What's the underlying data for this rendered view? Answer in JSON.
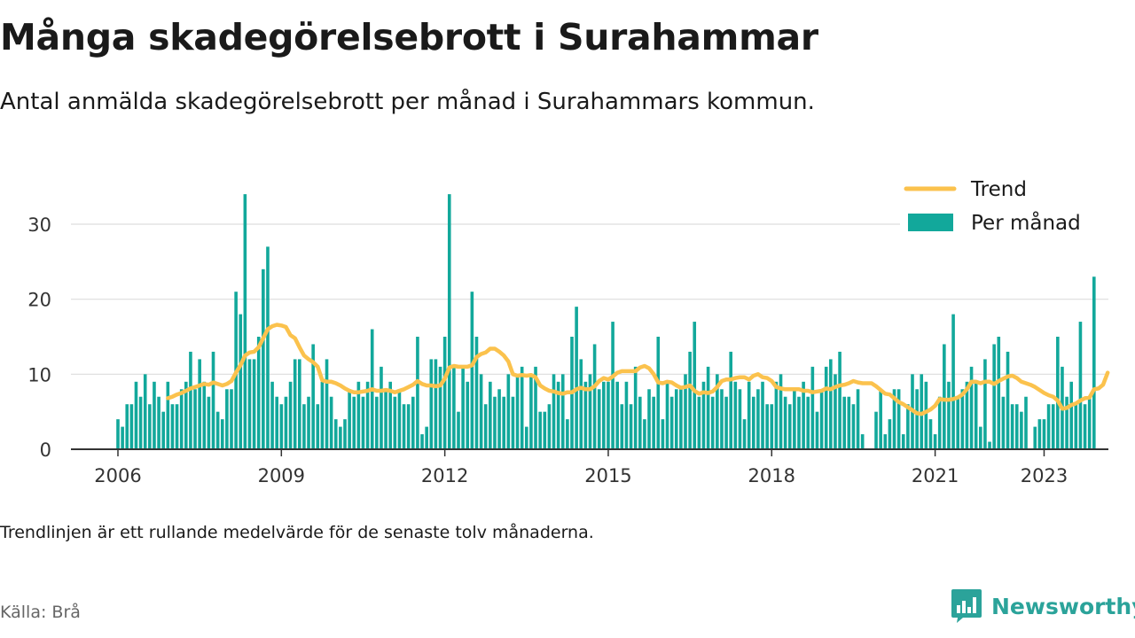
{
  "title": "Många skadegörelsebrott i Surahammar",
  "subtitle": "Antal anmälda skadegörelsebrott per månad i Surahammars kommun.",
  "note": "Trendlinjen är ett rullande medelvärde för de senaste tolv månaderna.",
  "source": "Källa: Brå",
  "brand": {
    "name": "Newsworthy",
    "icon": "newsworthy-logo-icon",
    "color": "#2ba39a"
  },
  "colors": {
    "bars": "#12a89b",
    "trend": "#fbc24d",
    "grid": "#dddddd",
    "axis": "#333333"
  },
  "chart_data": {
    "type": "bar",
    "start": "2006-01",
    "x_ticks": [
      "2006",
      "2009",
      "2012",
      "2015",
      "2018",
      "2021",
      "2023"
    ],
    "y_ticks": [
      0,
      10,
      20,
      30
    ],
    "ylim": [
      0,
      36
    ],
    "legend_position": "top-right",
    "grid": true,
    "series": [
      {
        "name": "Per månad",
        "type": "bar",
        "values": [
          4,
          3,
          6,
          6,
          9,
          7,
          10,
          6,
          9,
          7,
          5,
          9,
          6,
          6,
          8,
          9,
          13,
          8,
          12,
          9,
          7,
          13,
          5,
          4,
          8,
          8,
          21,
          18,
          34,
          12,
          12,
          15,
          24,
          27,
          9,
          7,
          6,
          7,
          9,
          12,
          12,
          6,
          7,
          14,
          6,
          9,
          12,
          7,
          4,
          3,
          4,
          8,
          7,
          9,
          7,
          9,
          16,
          7,
          11,
          8,
          9,
          7,
          8,
          6,
          6,
          7,
          15,
          2,
          3,
          12,
          12,
          11,
          15,
          34,
          11,
          5,
          11,
          9,
          21,
          15,
          10,
          6,
          9,
          7,
          8,
          7,
          10,
          7,
          10,
          11,
          3,
          10,
          11,
          5,
          5,
          6,
          10,
          9,
          10,
          4,
          15,
          19,
          12,
          9,
          10,
          14,
          8,
          9,
          9,
          17,
          9,
          6,
          9,
          6,
          11,
          7,
          4,
          8,
          7,
          15,
          4,
          9,
          7,
          8,
          8,
          10,
          13,
          17,
          7,
          9,
          11,
          7,
          10,
          8,
          7,
          13,
          9,
          8,
          4,
          9,
          7,
          8,
          9,
          6,
          6,
          9,
          10,
          7,
          6,
          8,
          7,
          9,
          7,
          11,
          5,
          8,
          11,
          12,
          10,
          13,
          7,
          7,
          6,
          8,
          2,
          0,
          0,
          5,
          8,
          2,
          4,
          8,
          8,
          2,
          6,
          10,
          8,
          10,
          9,
          4,
          2,
          7,
          14,
          9,
          18,
          7,
          8,
          9,
          11,
          9,
          3,
          12,
          1,
          14,
          15,
          7,
          13,
          6,
          6,
          5,
          7,
          0,
          3,
          4,
          4,
          6,
          6,
          15,
          11,
          7,
          9,
          6,
          17,
          6,
          7,
          23
        ]
      },
      {
        "name": "Trend",
        "type": "line",
        "values": [
          null,
          null,
          null,
          null,
          null,
          null,
          null,
          null,
          null,
          null,
          null,
          6.8,
          7.0,
          7.3,
          7.5,
          7.8,
          8.1,
          8.3,
          8.5,
          8.7,
          8.6,
          8.9,
          8.7,
          8.5,
          8.7,
          9.1,
          10.2,
          11.2,
          12.5,
          12.9,
          13.0,
          13.6,
          14.8,
          16.0,
          16.4,
          16.6,
          16.5,
          16.3,
          15.2,
          14.8,
          13.6,
          12.5,
          12.0,
          11.6,
          11.0,
          9.2,
          9.0,
          9.0,
          8.8,
          8.5,
          8.1,
          7.8,
          7.6,
          7.6,
          7.7,
          7.8,
          8.0,
          7.8,
          7.8,
          7.9,
          7.8,
          7.6,
          7.8,
          8.0,
          8.3,
          8.6,
          9.1,
          8.7,
          8.5,
          8.5,
          8.4,
          8.5,
          9.4,
          10.9,
          11.1,
          11.0,
          11.0,
          11.0,
          11.2,
          12.3,
          12.7,
          12.9,
          13.4,
          13.4,
          13.0,
          12.5,
          11.7,
          10.0,
          9.8,
          9.9,
          9.8,
          9.9,
          9.6,
          8.5,
          8.1,
          7.8,
          7.7,
          7.5,
          7.4,
          7.6,
          7.6,
          8.0,
          8.2,
          8.0,
          8.0,
          8.4,
          9.1,
          9.5,
          9.3,
          9.7,
          10.2,
          10.4,
          10.4,
          10.4,
          10.4,
          10.9,
          11.1,
          10.8,
          10.0,
          8.9,
          8.8,
          9.0,
          8.9,
          8.5,
          8.2,
          8.3,
          8.5,
          7.8,
          7.4,
          7.6,
          7.5,
          7.7,
          8.3,
          9.1,
          9.3,
          9.3,
          9.5,
          9.6,
          9.6,
          9.3,
          9.8,
          10.0,
          9.6,
          9.5,
          9.1,
          8.3,
          8.1,
          8.0,
          8.0,
          8.0,
          8.0,
          7.8,
          7.8,
          7.6,
          7.7,
          7.8,
          8.1,
          8.0,
          8.3,
          8.5,
          8.6,
          8.8,
          9.1,
          8.9,
          8.8,
          8.8,
          8.8,
          8.4,
          7.9,
          7.4,
          7.3,
          6.8,
          6.3,
          6.0,
          5.6,
          5.2,
          4.8,
          4.7,
          5.0,
          5.3,
          5.8,
          6.7,
          6.6,
          6.6,
          6.7,
          6.9,
          7.3,
          8.0,
          9.0,
          9.0,
          8.8,
          9.0,
          9.0,
          8.7,
          9.1,
          9.4,
          9.7,
          9.8,
          9.5,
          9.0,
          8.8,
          8.6,
          8.3,
          7.9,
          7.5,
          7.2,
          7.0,
          6.5,
          5.4,
          5.5,
          5.9,
          6.1,
          6.5,
          6.8,
          6.9,
          8.0,
          8.1,
          8.6,
          10.2
        ]
      }
    ]
  }
}
